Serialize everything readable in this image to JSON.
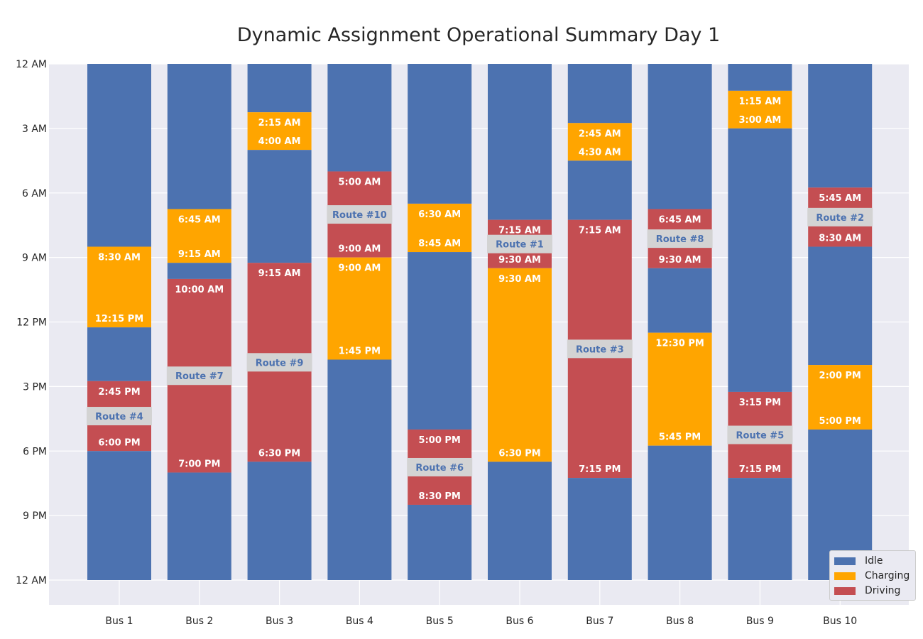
{
  "chart_data": {
    "type": "bar",
    "title": "Dynamic Assignment Operational Summary Day 1",
    "xlabel": "",
    "ylabel": "",
    "orientation": "vertical-timeline",
    "y_axis_inverted": true,
    "ylim_hours": [
      0,
      24
    ],
    "y_ticks": [
      {
        "hour": 0,
        "label": "12 AM"
      },
      {
        "hour": 3,
        "label": "3 AM"
      },
      {
        "hour": 6,
        "label": "6 AM"
      },
      {
        "hour": 9,
        "label": "9 AM"
      },
      {
        "hour": 12,
        "label": "12 PM"
      },
      {
        "hour": 15,
        "label": "3 PM"
      },
      {
        "hour": 18,
        "label": "6 PM"
      },
      {
        "hour": 21,
        "label": "9 PM"
      },
      {
        "hour": 24,
        "label": "12 AM"
      }
    ],
    "grid": true,
    "legend_position": "bottom-right",
    "colors": {
      "Idle": "#4c72b0",
      "Charging": "#ffa500",
      "Driving": "#c44e52",
      "route_box": "#d3d3d3",
      "background": "#eaeaf2"
    },
    "legend": [
      "Idle",
      "Charging",
      "Driving"
    ],
    "categories": [
      "Bus 1",
      "Bus 2",
      "Bus 3",
      "Bus 4",
      "Bus 5",
      "Bus 6",
      "Bus 7",
      "Bus 8",
      "Bus 9",
      "Bus 10"
    ],
    "buses": [
      {
        "name": "Bus 1",
        "segments": [
          {
            "state": "Idle",
            "start": 0,
            "end": 8.5
          },
          {
            "state": "Charging",
            "start": 8.5,
            "end": 12.25,
            "start_label": "8:30 AM",
            "end_label": "12:15 PM"
          },
          {
            "state": "Idle",
            "start": 12.25,
            "end": 14.75
          },
          {
            "state": "Driving",
            "start": 14.75,
            "end": 18,
            "start_label": "2:45 PM",
            "end_label": "6:00 PM",
            "route": "Route #4"
          },
          {
            "state": "Idle",
            "start": 18,
            "end": 24
          }
        ]
      },
      {
        "name": "Bus 2",
        "segments": [
          {
            "state": "Idle",
            "start": 0,
            "end": 6.75
          },
          {
            "state": "Charging",
            "start": 6.75,
            "end": 9.25,
            "start_label": "6:45 AM",
            "end_label": "9:15 AM"
          },
          {
            "state": "Idle",
            "start": 9.25,
            "end": 10
          },
          {
            "state": "Driving",
            "start": 10,
            "end": 19,
            "start_label": "10:00 AM",
            "end_label": "7:00 PM",
            "route": "Route #7"
          },
          {
            "state": "Idle",
            "start": 19,
            "end": 24
          }
        ]
      },
      {
        "name": "Bus 3",
        "segments": [
          {
            "state": "Idle",
            "start": 0,
            "end": 2.25
          },
          {
            "state": "Charging",
            "start": 2.25,
            "end": 4,
            "start_label": "2:15 AM",
            "end_label": "4:00 AM"
          },
          {
            "state": "Idle",
            "start": 4,
            "end": 9.25
          },
          {
            "state": "Driving",
            "start": 9.25,
            "end": 18.5,
            "start_label": "9:15 AM",
            "end_label": "6:30 PM",
            "route": "Route #9"
          },
          {
            "state": "Idle",
            "start": 18.5,
            "end": 24
          }
        ]
      },
      {
        "name": "Bus 4",
        "segments": [
          {
            "state": "Idle",
            "start": 0,
            "end": 5
          },
          {
            "state": "Driving",
            "start": 5,
            "end": 9,
            "start_label": "5:00 AM",
            "end_label": "9:00 AM",
            "route": "Route #10"
          },
          {
            "state": "Charging",
            "start": 9,
            "end": 13.75,
            "start_label": "9:00 AM",
            "end_label": "1:45 PM"
          },
          {
            "state": "Idle",
            "start": 13.75,
            "end": 24
          }
        ]
      },
      {
        "name": "Bus 5",
        "segments": [
          {
            "state": "Idle",
            "start": 0,
            "end": 6.5
          },
          {
            "state": "Charging",
            "start": 6.5,
            "end": 8.75,
            "start_label": "6:30 AM",
            "end_label": "8:45 AM"
          },
          {
            "state": "Idle",
            "start": 8.75,
            "end": 17
          },
          {
            "state": "Driving",
            "start": 17,
            "end": 20.5,
            "start_label": "5:00 PM",
            "end_label": "8:30 PM",
            "route": "Route #6"
          },
          {
            "state": "Idle",
            "start": 20.5,
            "end": 24
          }
        ]
      },
      {
        "name": "Bus 6",
        "segments": [
          {
            "state": "Idle",
            "start": 0,
            "end": 7.25
          },
          {
            "state": "Driving",
            "start": 7.25,
            "end": 9.5,
            "start_label": "7:15 AM",
            "end_label": "9:30 AM",
            "route": "Route #1"
          },
          {
            "state": "Charging",
            "start": 9.5,
            "end": 18.5,
            "start_label": "9:30 AM",
            "end_label": "6:30 PM"
          },
          {
            "state": "Idle",
            "start": 18.5,
            "end": 24
          }
        ]
      },
      {
        "name": "Bus 7",
        "segments": [
          {
            "state": "Idle",
            "start": 0,
            "end": 2.75
          },
          {
            "state": "Charging",
            "start": 2.75,
            "end": 4.5,
            "start_label": "2:45 AM",
            "end_label": "4:30 AM"
          },
          {
            "state": "Idle",
            "start": 4.5,
            "end": 7.25
          },
          {
            "state": "Driving",
            "start": 7.25,
            "end": 19.25,
            "start_label": "7:15 AM",
            "end_label": "7:15 PM",
            "route": "Route #3"
          },
          {
            "state": "Idle",
            "start": 19.25,
            "end": 24
          }
        ]
      },
      {
        "name": "Bus 8",
        "segments": [
          {
            "state": "Idle",
            "start": 0,
            "end": 6.75
          },
          {
            "state": "Driving",
            "start": 6.75,
            "end": 9.5,
            "start_label": "6:45 AM",
            "end_label": "9:30 AM",
            "route": "Route #8"
          },
          {
            "state": "Idle",
            "start": 9.5,
            "end": 12.5
          },
          {
            "state": "Charging",
            "start": 12.5,
            "end": 17.75,
            "start_label": "12:30 PM",
            "end_label": "5:45 PM"
          },
          {
            "state": "Idle",
            "start": 17.75,
            "end": 24
          }
        ]
      },
      {
        "name": "Bus 9",
        "segments": [
          {
            "state": "Idle",
            "start": 0,
            "end": 1.25
          },
          {
            "state": "Charging",
            "start": 1.25,
            "end": 3,
            "start_label": "1:15 AM",
            "end_label": "3:00 AM"
          },
          {
            "state": "Idle",
            "start": 3,
            "end": 15.25
          },
          {
            "state": "Driving",
            "start": 15.25,
            "end": 19.25,
            "start_label": "3:15 PM",
            "end_label": "7:15 PM",
            "route": "Route #5"
          },
          {
            "state": "Idle",
            "start": 19.25,
            "end": 24
          }
        ]
      },
      {
        "name": "Bus 10",
        "segments": [
          {
            "state": "Idle",
            "start": 0,
            "end": 5.75
          },
          {
            "state": "Driving",
            "start": 5.75,
            "end": 8.5,
            "start_label": "5:45 AM",
            "end_label": "8:30 AM",
            "route": "Route #2"
          },
          {
            "state": "Idle",
            "start": 8.5,
            "end": 14
          },
          {
            "state": "Charging",
            "start": 14,
            "end": 17,
            "start_label": "2:00 PM",
            "end_label": "5:00 PM"
          },
          {
            "state": "Idle",
            "start": 17,
            "end": 24
          }
        ]
      }
    ]
  }
}
